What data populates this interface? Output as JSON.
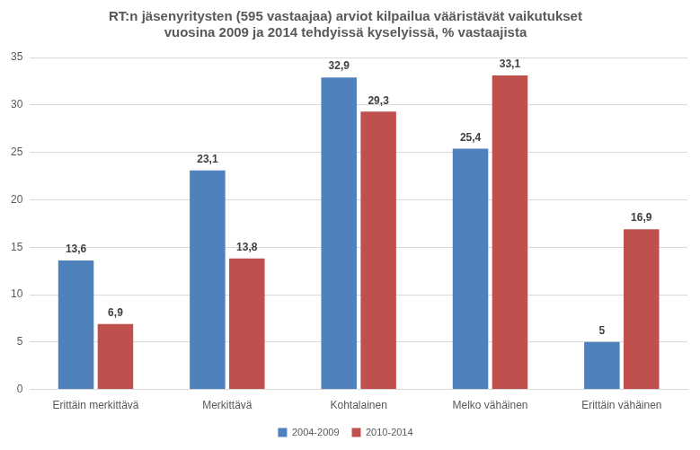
{
  "chart_data": {
    "type": "bar",
    "title": [
      "RT:n jäsenyritysten (595 vastaajaa) arviot kilpailua vääristävät vaikutukset",
      "vuosina 2009 ja 2014 tehdyissä kyselyissä, % vastaajista"
    ],
    "categories": [
      "Erittäin merkittävä",
      "Merkittävä",
      "Kohtalainen",
      "Melko vähäinen",
      "Erittäin vähäinen"
    ],
    "series": [
      {
        "name": "2004-2009",
        "color": "#4f81bd",
        "values": [
          13.6,
          23.1,
          32.9,
          25.4,
          5
        ],
        "value_labels": [
          "13,6",
          "23,1",
          "32,9",
          "25,4",
          "5"
        ]
      },
      {
        "name": "2010-2014",
        "color": "#c0504d",
        "values": [
          6.9,
          13.8,
          29.3,
          33.1,
          16.9
        ],
        "value_labels": [
          "6,9",
          "13,8",
          "29,3",
          "33,1",
          "16,9"
        ]
      }
    ],
    "ylim": [
      0,
      35
    ],
    "yticks": [
      0,
      5,
      10,
      15,
      20,
      25,
      30,
      35
    ],
    "grid": true,
    "legend": "bottom",
    "data_labels": true
  }
}
